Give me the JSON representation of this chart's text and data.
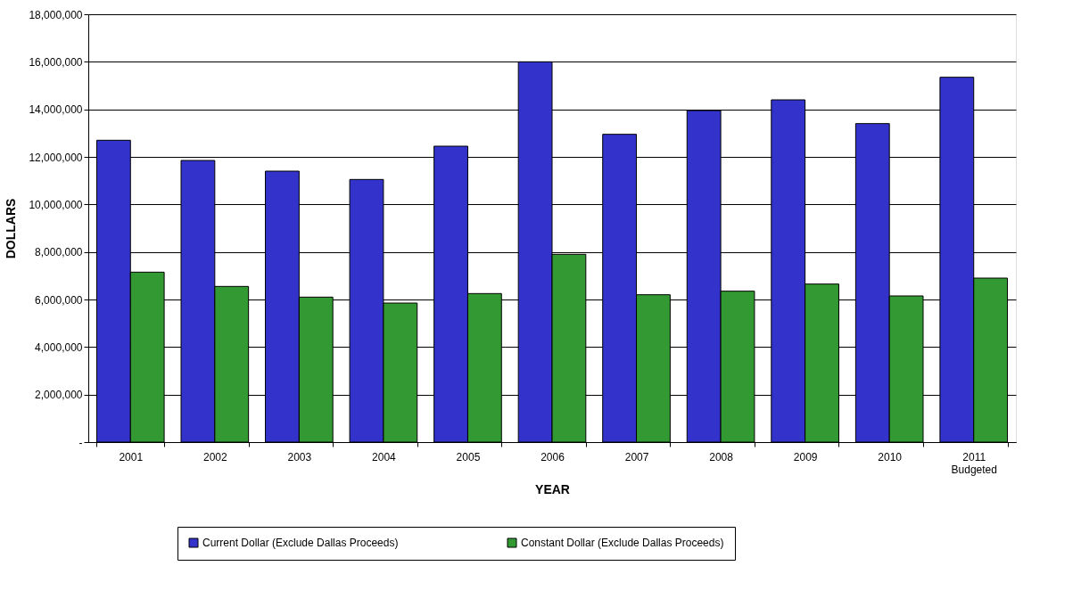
{
  "chart_data": {
    "type": "bar",
    "xlabel": "YEAR",
    "ylabel": "DOLLARS",
    "categories": [
      "2001",
      "2002",
      "2003",
      "2004",
      "2005",
      "2006",
      "2007",
      "2008",
      "2009",
      "2010",
      "2011\nBudgeted"
    ],
    "series": [
      {
        "name": "Current Dollar (Exclude Dallas Proceeds)",
        "color": "#3333cc",
        "values": [
          12700000,
          11850000,
          11400000,
          11050000,
          12450000,
          16000000,
          12950000,
          13950000,
          14400000,
          13400000,
          15350000
        ]
      },
      {
        "name": "Constant Dollar (Exclude Dallas Proceeds)",
        "color": "#339933",
        "values": [
          7150000,
          6550000,
          6100000,
          5850000,
          6250000,
          7900000,
          6200000,
          6350000,
          6650000,
          6150000,
          6900000
        ]
      }
    ],
    "ylim": [
      0,
      18000000
    ],
    "yticks": [
      {
        "value": 0,
        "label": "-"
      },
      {
        "value": 2000000,
        "label": "2,000,000"
      },
      {
        "value": 4000000,
        "label": "4,000,000"
      },
      {
        "value": 6000000,
        "label": "6,000,000"
      },
      {
        "value": 8000000,
        "label": "8,000,000"
      },
      {
        "value": 10000000,
        "label": "10,000,000"
      },
      {
        "value": 12000000,
        "label": "12,000,000"
      },
      {
        "value": 14000000,
        "label": "14,000,000"
      },
      {
        "value": 16000000,
        "label": "16,000,000"
      },
      {
        "value": 18000000,
        "label": "18,000,000"
      }
    ],
    "grid": "y",
    "legend": "bottom"
  }
}
